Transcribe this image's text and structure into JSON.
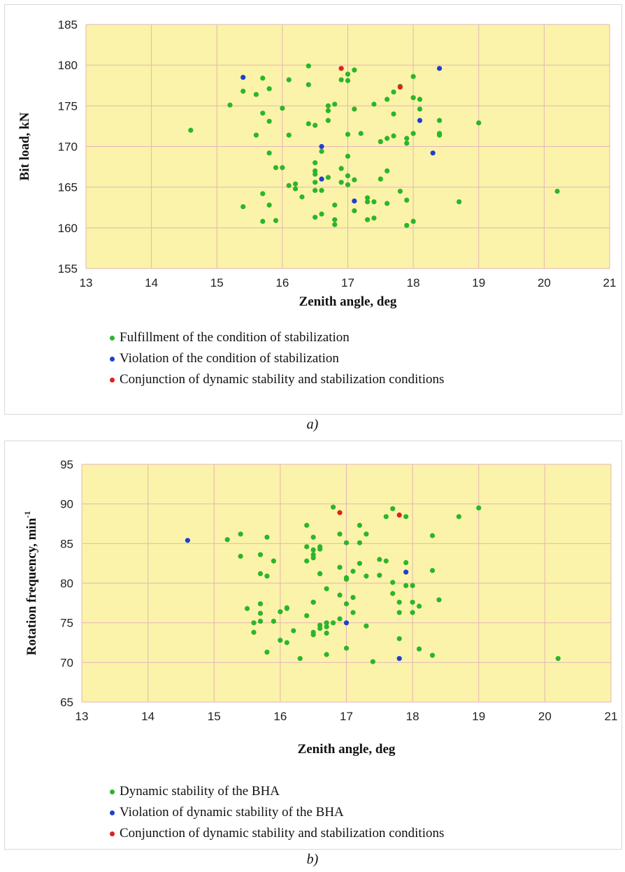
{
  "captions": {
    "a": "a)",
    "b": "b)"
  },
  "chart_data": [
    {
      "type": "scatter",
      "xlabel": "Zenith angle, deg",
      "ylabel": "Bit load, kN",
      "xlim": [
        13,
        21
      ],
      "ylim": [
        155,
        185
      ],
      "xticks": [
        "13",
        "14",
        "15",
        "16",
        "17",
        "18",
        "19",
        "20",
        "21"
      ],
      "yticks": [
        "155",
        "160",
        "165",
        "170",
        "175",
        "180",
        "185"
      ],
      "grid": true,
      "legend_position": "bottom",
      "background_color": "#fbf3a9",
      "series": [
        {
          "name": "Fulfillment of the condition of stabilization",
          "color": "#2bb52b",
          "points": [
            [
              14.6,
              172.0
            ],
            [
              15.2,
              175.1
            ],
            [
              15.4,
              176.8
            ],
            [
              15.4,
              162.6
            ],
            [
              15.6,
              176.4
            ],
            [
              15.6,
              171.4
            ],
            [
              15.7,
              178.4
            ],
            [
              15.7,
              174.1
            ],
            [
              15.7,
              164.2
            ],
            [
              15.7,
              160.8
            ],
            [
              15.8,
              177.1
            ],
            [
              15.8,
              162.8
            ],
            [
              15.8,
              169.2
            ],
            [
              15.8,
              173.1
            ],
            [
              15.9,
              167.4
            ],
            [
              15.9,
              160.9
            ],
            [
              16.0,
              174.7
            ],
            [
              16.0,
              167.4
            ],
            [
              16.1,
              178.2
            ],
            [
              16.1,
              171.4
            ],
            [
              16.1,
              165.2
            ],
            [
              16.2,
              165.4
            ],
            [
              16.2,
              164.8
            ],
            [
              16.3,
              163.8
            ],
            [
              16.4,
              179.9
            ],
            [
              16.4,
              177.6
            ],
            [
              16.4,
              172.8
            ],
            [
              16.5,
              172.6
            ],
            [
              16.5,
              168.0
            ],
            [
              16.5,
              167.0
            ],
            [
              16.5,
              166.6
            ],
            [
              16.5,
              165.6
            ],
            [
              16.5,
              164.6
            ],
            [
              16.5,
              161.3
            ],
            [
              16.6,
              161.7
            ],
            [
              16.6,
              169.4
            ],
            [
              16.6,
              164.6
            ],
            [
              16.7,
              175.0
            ],
            [
              16.7,
              174.4
            ],
            [
              16.7,
              173.2
            ],
            [
              16.7,
              166.2
            ],
            [
              16.8,
              175.2
            ],
            [
              16.8,
              160.4
            ],
            [
              16.8,
              162.8
            ],
            [
              16.8,
              161.0
            ],
            [
              16.9,
              178.2
            ],
            [
              16.9,
              167.3
            ],
            [
              16.9,
              165.6
            ],
            [
              17.0,
              178.1
            ],
            [
              17.0,
              178.9
            ],
            [
              17.0,
              168.8
            ],
            [
              17.0,
              166.4
            ],
            [
              17.0,
              165.3
            ],
            [
              17.0,
              171.5
            ],
            [
              17.1,
              165.9
            ],
            [
              17.1,
              162.1
            ],
            [
              17.1,
              174.6
            ],
            [
              17.1,
              179.4
            ],
            [
              17.2,
              171.6
            ],
            [
              17.3,
              163.7
            ],
            [
              17.3,
              161.0
            ],
            [
              17.3,
              163.2
            ],
            [
              17.4,
              175.2
            ],
            [
              17.4,
              163.2
            ],
            [
              17.4,
              161.2
            ],
            [
              17.5,
              170.6
            ],
            [
              17.5,
              166.0
            ],
            [
              17.6,
              167.0
            ],
            [
              17.6,
              171.0
            ],
            [
              17.6,
              163.0
            ],
            [
              17.6,
              175.8
            ],
            [
              17.7,
              176.7
            ],
            [
              17.7,
              174.0
            ],
            [
              17.7,
              171.3
            ],
            [
              17.8,
              177.4
            ],
            [
              17.8,
              164.5
            ],
            [
              17.9,
              171.0
            ],
            [
              17.9,
              170.4
            ],
            [
              17.9,
              163.4
            ],
            [
              17.9,
              160.3
            ],
            [
              18.0,
              178.6
            ],
            [
              18.0,
              171.6
            ],
            [
              18.0,
              160.8
            ],
            [
              18.0,
              176.0
            ],
            [
              18.1,
              175.8
            ],
            [
              18.1,
              174.6
            ],
            [
              18.4,
              173.2
            ],
            [
              18.4,
              171.6
            ],
            [
              18.4,
              171.4
            ],
            [
              18.7,
              163.2
            ],
            [
              19.0,
              172.9
            ],
            [
              20.2,
              164.5
            ]
          ]
        },
        {
          "name": "Violation of the condition of stabilization",
          "color": "#1f3fcf",
          "points": [
            [
              15.4,
              178.5
            ],
            [
              16.6,
              166.0
            ],
            [
              16.6,
              170.0
            ],
            [
              17.1,
              163.3
            ],
            [
              18.1,
              173.2
            ],
            [
              18.3,
              169.2
            ],
            [
              18.4,
              179.6
            ]
          ]
        },
        {
          "name": "Conjunction of dynamic stability and stabilization conditions",
          "color": "#e02020",
          "points": [
            [
              16.9,
              179.6
            ],
            [
              17.8,
              177.3
            ]
          ]
        }
      ]
    },
    {
      "type": "scatter",
      "xlabel": "Zenith angle, deg",
      "ylabel": "Rotation frequency, min",
      "ylabel_superscript": "-1",
      "xlim": [
        13,
        21
      ],
      "ylim": [
        65,
        95
      ],
      "xticks": [
        "13",
        "14",
        "15",
        "16",
        "17",
        "18",
        "19",
        "20",
        "21"
      ],
      "yticks": [
        "65",
        "70",
        "75",
        "80",
        "85",
        "90",
        "95"
      ],
      "grid": true,
      "legend_position": "bottom",
      "background_color": "#fbf3a9",
      "series": [
        {
          "name": "Dynamic stability of the BHA",
          "color": "#2bb52b",
          "points": [
            [
              15.2,
              85.5
            ],
            [
              15.4,
              86.2
            ],
            [
              15.4,
              83.4
            ],
            [
              15.5,
              76.8
            ],
            [
              15.6,
              73.8
            ],
            [
              15.6,
              75.0
            ],
            [
              15.7,
              83.6
            ],
            [
              15.7,
              81.2
            ],
            [
              15.7,
              77.4
            ],
            [
              15.7,
              76.2
            ],
            [
              15.7,
              75.2
            ],
            [
              15.8,
              85.8
            ],
            [
              15.8,
              80.9
            ],
            [
              15.8,
              71.3
            ],
            [
              15.9,
              75.2
            ],
            [
              15.9,
              82.8
            ],
            [
              16.0,
              76.4
            ],
            [
              16.0,
              72.8
            ],
            [
              16.1,
              76.8
            ],
            [
              16.1,
              76.9
            ],
            [
              16.1,
              72.5
            ],
            [
              16.2,
              74.0
            ],
            [
              16.3,
              70.5
            ],
            [
              16.4,
              82.8
            ],
            [
              16.4,
              84.6
            ],
            [
              16.4,
              75.9
            ],
            [
              16.4,
              87.3
            ],
            [
              16.5,
              85.8
            ],
            [
              16.5,
              84.2
            ],
            [
              16.5,
              83.6
            ],
            [
              16.5,
              83.2
            ],
            [
              16.5,
              77.6
            ],
            [
              16.5,
              77.6
            ],
            [
              16.5,
              73.8
            ],
            [
              16.5,
              73.5
            ],
            [
              16.6,
              84.3
            ],
            [
              16.6,
              84.6
            ],
            [
              16.6,
              81.2
            ],
            [
              16.6,
              81.2
            ],
            [
              16.6,
              74.7
            ],
            [
              16.6,
              74.3
            ],
            [
              16.7,
              79.3
            ],
            [
              16.7,
              75.0
            ],
            [
              16.7,
              74.5
            ],
            [
              16.7,
              71.0
            ],
            [
              16.7,
              73.7
            ],
            [
              16.8,
              89.6
            ],
            [
              16.8,
              75.0
            ],
            [
              16.9,
              86.2
            ],
            [
              16.9,
              82.0
            ],
            [
              16.9,
              78.5
            ],
            [
              16.9,
              75.5
            ],
            [
              17.0,
              85.1
            ],
            [
              17.0,
              80.5
            ],
            [
              17.0,
              77.4
            ],
            [
              17.0,
              71.8
            ],
            [
              17.0,
              80.7
            ],
            [
              17.1,
              81.5
            ],
            [
              17.1,
              76.3
            ],
            [
              17.1,
              78.2
            ],
            [
              17.2,
              87.3
            ],
            [
              17.2,
              82.5
            ],
            [
              17.2,
              85.1
            ],
            [
              17.3,
              86.2
            ],
            [
              17.3,
              80.9
            ],
            [
              17.3,
              74.6
            ],
            [
              17.4,
              70.1
            ],
            [
              17.5,
              83.0
            ],
            [
              17.5,
              81.0
            ],
            [
              17.6,
              82.8
            ],
            [
              17.6,
              88.4
            ],
            [
              17.7,
              89.4
            ],
            [
              17.7,
              80.1
            ],
            [
              17.7,
              78.7
            ],
            [
              17.8,
              76.3
            ],
            [
              17.8,
              77.6
            ],
            [
              17.8,
              73.0
            ],
            [
              17.9,
              82.6
            ],
            [
              17.9,
              79.7
            ],
            [
              17.9,
              88.4
            ],
            [
              18.0,
              79.7
            ],
            [
              18.0,
              77.6
            ],
            [
              18.0,
              76.3
            ],
            [
              18.1,
              77.1
            ],
            [
              18.1,
              71.7
            ],
            [
              18.3,
              81.6
            ],
            [
              18.3,
              86.0
            ],
            [
              18.3,
              70.9
            ],
            [
              18.4,
              77.9
            ],
            [
              18.7,
              88.4
            ],
            [
              19.0,
              89.5
            ],
            [
              20.2,
              70.5
            ]
          ]
        },
        {
          "name": "Violation of dynamic stability of the BHA",
          "color": "#1f3fcf",
          "points": [
            [
              14.6,
              85.4
            ],
            [
              17.0,
              75.0
            ],
            [
              17.8,
              70.5
            ],
            [
              17.9,
              81.4
            ]
          ]
        },
        {
          "name": "Conjunction of dynamic stability and stabilization conditions",
          "color": "#e02020",
          "points": [
            [
              16.9,
              88.9
            ],
            [
              17.8,
              88.6
            ]
          ]
        }
      ]
    }
  ]
}
